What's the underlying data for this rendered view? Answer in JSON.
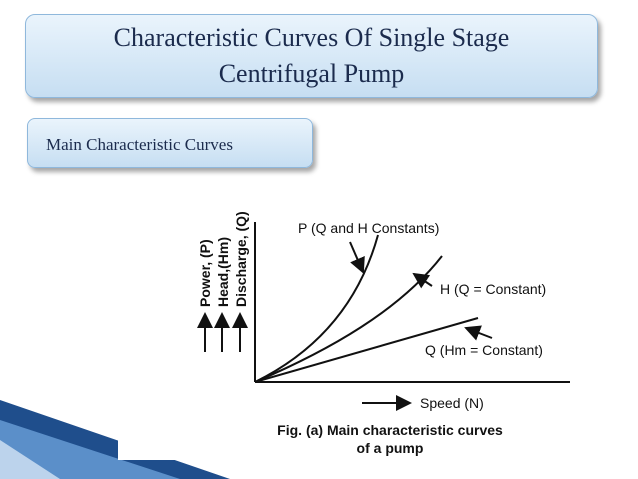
{
  "header": {
    "title": "Characteristic Curves Of Single Stage Centrifugal Pump"
  },
  "section": {
    "label": "Main Characteristic Curves"
  },
  "figure": {
    "y_labels": [
      "Power, (P)",
      "Head,(Hm)",
      "Discharge, (Q)"
    ],
    "curves": [
      {
        "label": "P (Q and H Constants)"
      },
      {
        "label": "H (Q = Constant)"
      },
      {
        "label": "Q (Hm = Constant)"
      }
    ],
    "x_label": "Speed (N)",
    "caption": [
      "Fig. (a) Main characteristic curves",
      "of a pump"
    ]
  }
}
